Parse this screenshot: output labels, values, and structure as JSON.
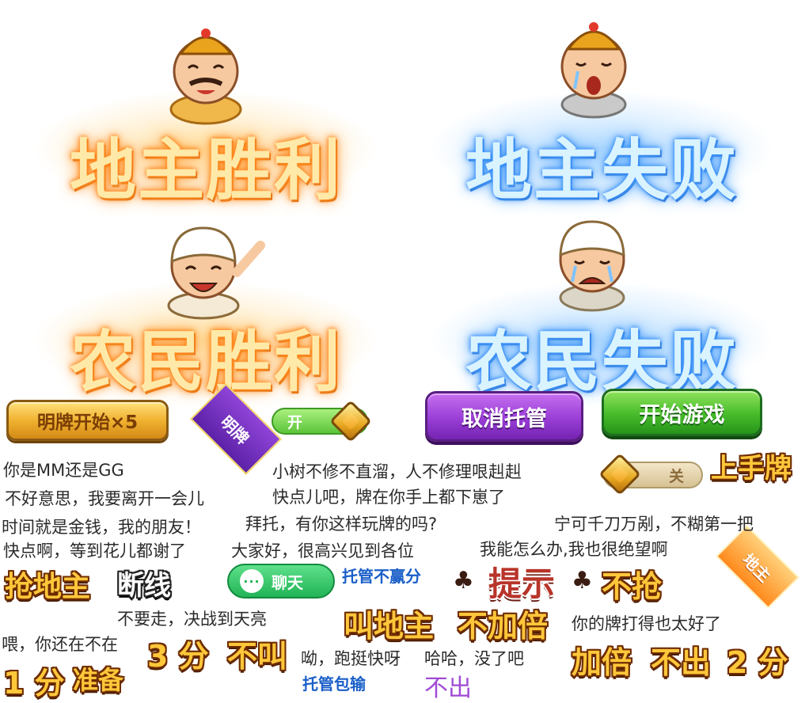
{
  "results": {
    "landlord_win": "地主胜利",
    "landlord_lose": "地主失败",
    "farmer_win": "农民胜利",
    "farmer_lose": "农民失败"
  },
  "buttons": {
    "show_cards_x5": "明牌开始×5",
    "cancel_auto": "取消托管",
    "start_game": "开始游戏",
    "chat": "聊天"
  },
  "ribbons": {
    "show_cards": "明牌",
    "landlord": "地主"
  },
  "toggles": {
    "on_label": "开",
    "off_label": "关"
  },
  "action_words": {
    "first_hand": "上手牌",
    "grab_landlord": "抢地主",
    "disconnect": "断线",
    "hint": "提示",
    "no_grab": "不抢",
    "call_landlord": "叫地主",
    "no_double": "不加倍",
    "three_points": "3 分",
    "no_call": "不叫",
    "one_point": "1 分",
    "ready": "准备",
    "double": "加倍",
    "pass": "不出",
    "two_points": "2 分"
  },
  "status": {
    "auto_no_win": "托管不赢分",
    "auto_no_lose": "托管包输",
    "pass_plain": "不出"
  },
  "phrases": [
    "你是MM还是GG",
    "不好意思，我要离开一会儿",
    "时间就是金钱，我的朋友！",
    "快点啊，等到花儿都谢了",
    "小树不修不直溜，人不修理哏赳赳",
    "快点儿吧，牌在你手上都下崽了",
    "拜托，有你这样玩牌的吗?",
    "大家好，很高兴见到各位",
    "宁可千刀万剐，不糊第一把",
    "我能怎么办,我也很绝望啊",
    "不要走，决战到天亮",
    "喂，你还在不在",
    "你的牌打得也太好了",
    "呦，跑挺快呀",
    "哈哈，没了吧"
  ],
  "colors": {
    "win_glow": "#ff8a1c",
    "lose_glow": "#3a8ff0",
    "gold": "#f0b230",
    "purple": "#9a3ed6",
    "green": "#46bb2a"
  }
}
